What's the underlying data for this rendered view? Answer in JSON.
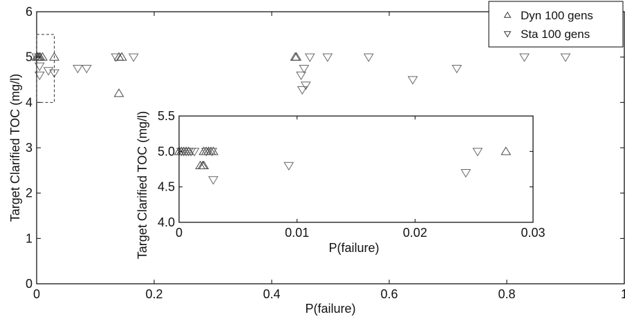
{
  "chart_data": [
    {
      "id": "main",
      "type": "scatter",
      "title": "",
      "xlabel": "P(failure)",
      "ylabel": "Target Clarified TOC (mg/l)",
      "xlim": [
        0,
        1
      ],
      "ylim": [
        0,
        6
      ],
      "x_ticks": [
        0,
        0.2,
        0.4,
        0.6,
        0.8,
        1
      ],
      "x_tick_labels": [
        "0",
        "0.2",
        "0.4",
        "0.6",
        "0.8",
        "1"
      ],
      "y_ticks": [
        0,
        1,
        2,
        3,
        4,
        5,
        6
      ],
      "y_tick_labels": [
        "0",
        "1",
        "2",
        "3",
        "4",
        "5",
        "6"
      ],
      "grid": false,
      "legend_position": "top-right",
      "zoom_box": {
        "x": [
          0,
          0.03
        ],
        "y": [
          4,
          5.5
        ]
      },
      "series": [
        {
          "name": "Dyn 100 gens",
          "marker": "triangle-up",
          "points": [
            [
              0.0,
              5.0
            ],
            [
              0.002,
              5.0
            ],
            [
              0.004,
              5.0
            ],
            [
              0.006,
              5.0
            ],
            [
              0.01,
              5.0
            ],
            [
              0.03,
              5.0
            ],
            [
              0.14,
              5.0
            ],
            [
              0.145,
              5.0
            ],
            [
              0.14,
              4.2
            ],
            [
              0.44,
              5.0
            ],
            [
              0.442,
              5.0
            ]
          ]
        },
        {
          "name": "Sta 100 gens",
          "marker": "triangle-down",
          "points": [
            [
              0.0,
              5.0
            ],
            [
              0.005,
              4.8
            ],
            [
              0.005,
              4.6
            ],
            [
              0.02,
              4.7
            ],
            [
              0.03,
              4.65
            ],
            [
              0.07,
              4.75
            ],
            [
              0.085,
              4.75
            ],
            [
              0.135,
              5.0
            ],
            [
              0.165,
              5.0
            ],
            [
              0.45,
              4.6
            ],
            [
              0.455,
              4.75
            ],
            [
              0.452,
              4.28
            ],
            [
              0.458,
              4.38
            ],
            [
              0.465,
              5.0
            ],
            [
              0.495,
              5.0
            ],
            [
              0.565,
              5.0
            ],
            [
              0.64,
              4.5
            ],
            [
              0.715,
              4.75
            ],
            [
              0.83,
              5.0
            ],
            [
              0.9,
              5.0
            ]
          ]
        }
      ]
    },
    {
      "id": "inset",
      "type": "scatter",
      "title": "",
      "xlabel": "P(failure)",
      "ylabel": "Target Clarified TOC (mg/l)",
      "xlim": [
        0,
        0.03
      ],
      "ylim": [
        4.0,
        5.5
      ],
      "x_ticks": [
        0,
        0.01,
        0.02,
        0.03
      ],
      "x_tick_labels": [
        "0",
        "0.01",
        "0.02",
        "0.03"
      ],
      "y_ticks": [
        4.0,
        4.5,
        5.0,
        5.5
      ],
      "y_tick_labels": [
        "4.0",
        "4.5",
        "5.0",
        "5.5"
      ],
      "grid": false,
      "series": [
        {
          "name": "Dyn 100 gens",
          "marker": "triangle-up",
          "points": [
            [
              0.0,
              5.0
            ],
            [
              0.0002,
              5.0
            ],
            [
              0.0004,
              5.0
            ],
            [
              0.0006,
              5.0
            ],
            [
              0.0008,
              5.0
            ],
            [
              0.0018,
              4.8
            ],
            [
              0.002,
              4.8
            ],
            [
              0.0021,
              4.8
            ],
            [
              0.0021,
              5.0
            ],
            [
              0.0023,
              5.0
            ],
            [
              0.0025,
              5.0
            ],
            [
              0.0027,
              5.0
            ],
            [
              0.0029,
              5.0
            ],
            [
              0.0277,
              5.0
            ]
          ]
        },
        {
          "name": "Sta 100 gens",
          "marker": "triangle-down",
          "points": [
            [
              0.0002,
              5.0
            ],
            [
              0.0004,
              5.0
            ],
            [
              0.0006,
              5.0
            ],
            [
              0.0008,
              5.0
            ],
            [
              0.001,
              5.0
            ],
            [
              0.0013,
              5.0
            ],
            [
              0.0023,
              5.0
            ],
            [
              0.0028,
              5.0
            ],
            [
              0.0029,
              4.6
            ],
            [
              0.0093,
              4.8
            ],
            [
              0.0243,
              4.7
            ],
            [
              0.0253,
              5.0
            ]
          ]
        }
      ]
    }
  ]
}
